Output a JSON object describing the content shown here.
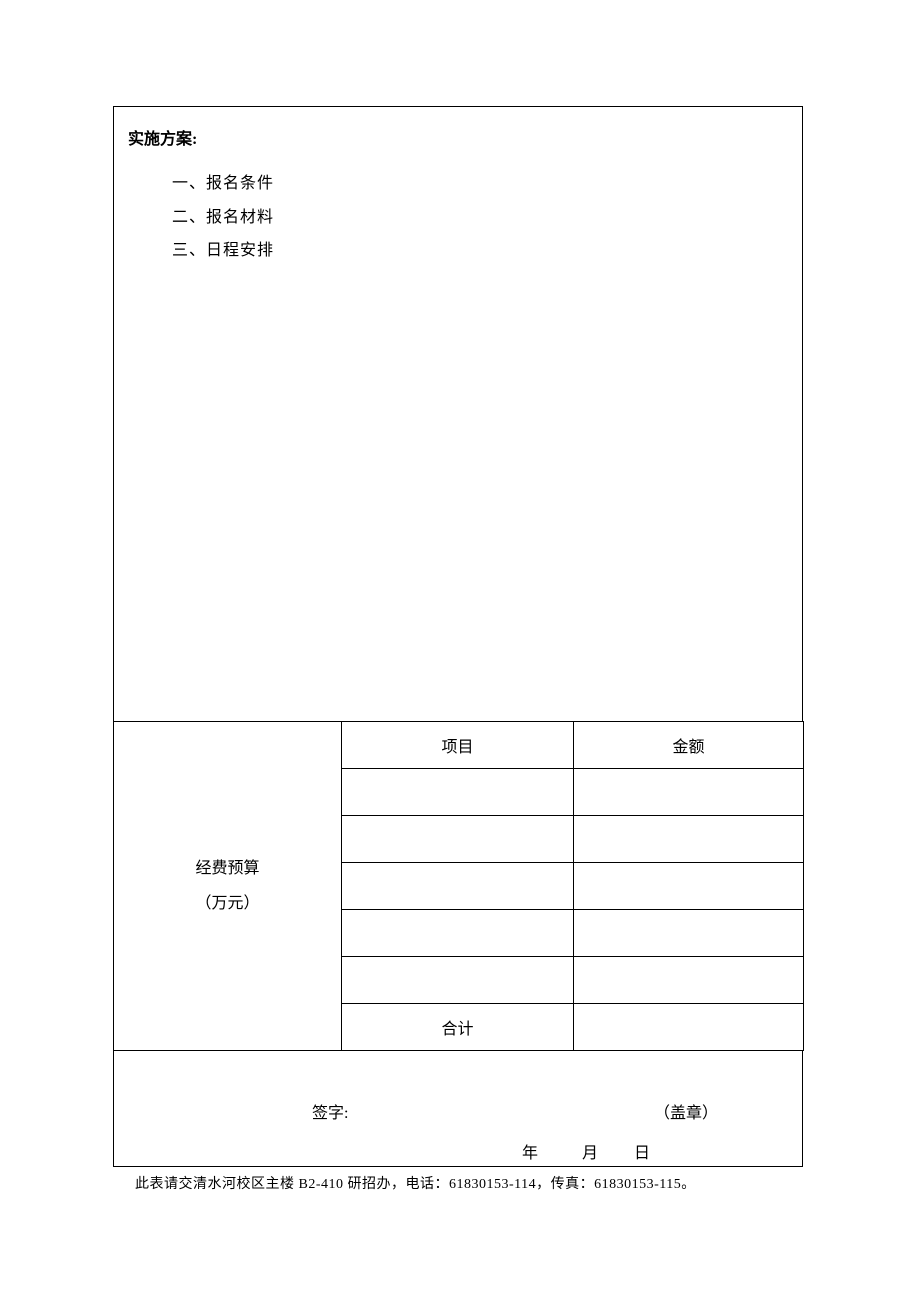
{
  "plan": {
    "title": "实施方案:",
    "items": [
      "一、报名条件",
      "二、报名材料",
      "三、日程安排"
    ]
  },
  "budget": {
    "label_line1": "经费预算",
    "label_line2": "（万元）",
    "header": {
      "item": "项目",
      "amount": "金额"
    },
    "rows": [
      {
        "item": "",
        "amount": ""
      },
      {
        "item": "",
        "amount": ""
      },
      {
        "item": "",
        "amount": ""
      },
      {
        "item": "",
        "amount": ""
      },
      {
        "item": "",
        "amount": ""
      }
    ],
    "total_label": "合计",
    "total_amount": ""
  },
  "signature": {
    "sign_label": "签字:",
    "stamp_label": "（盖章）",
    "date": {
      "year_label": "年",
      "month_label": "月",
      "day_label": "日"
    }
  },
  "footer": {
    "note": "此表请交清水河校区主楼 B2-410 研招办，电话：61830153-114，传真：61830153-115。"
  },
  "colors": {
    "text": "#000000",
    "border": "#000000",
    "background": "#ffffff"
  },
  "typography": {
    "body_fontsize": 16,
    "footer_fontsize": 14,
    "font_family": "SimSun"
  }
}
